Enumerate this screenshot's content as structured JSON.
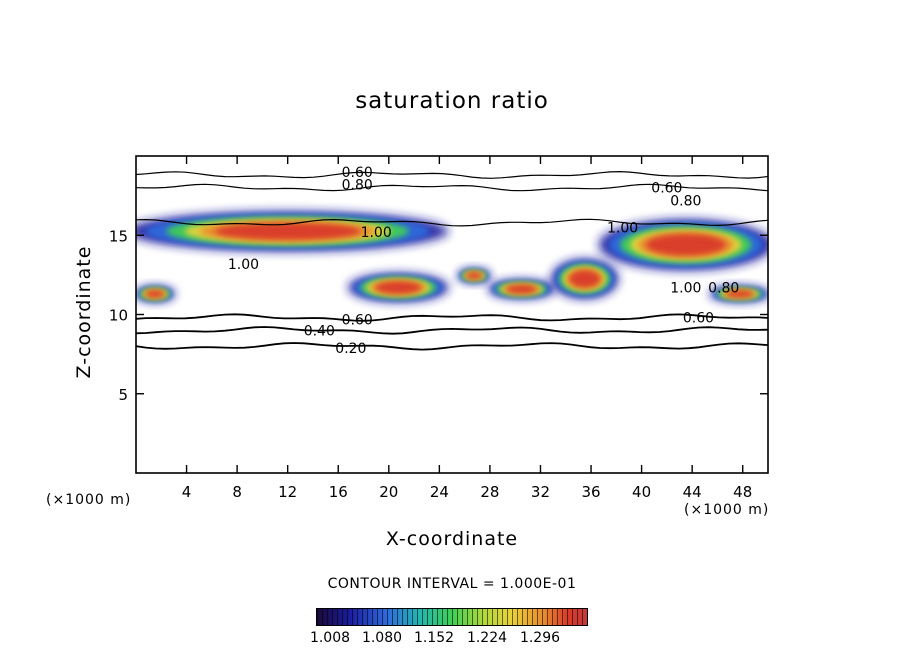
{
  "title": "saturation ratio",
  "axes": {
    "xlabel": "X-coordinate",
    "ylabel": "Z-coordinate",
    "x_unit": "(×1000 m)",
    "z_unit": "(×1000 m)"
  },
  "contour_interval_label": "CONTOUR INTERVAL = 1.000E-01",
  "colorbar": {
    "tick_labels": [
      "1.008",
      "1.080",
      "1.152",
      "1.224",
      "1.296"
    ],
    "colors": [
      "#1a0b3a",
      "#1b1b9e",
      "#2f6bdc",
      "#23b6b0",
      "#3fcf55",
      "#b3d93b",
      "#e9d23a",
      "#e88a2f",
      "#d93a2a"
    ]
  },
  "chart_data": {
    "type": "heatmap",
    "title": "saturation ratio",
    "xlabel": "X-coordinate",
    "ylabel": "Z-coordinate",
    "xlim": [
      0,
      50
    ],
    "ylim": [
      0,
      20
    ],
    "x_ticks": [
      4,
      8,
      12,
      16,
      20,
      24,
      28,
      32,
      36,
      40,
      44,
      48
    ],
    "y_ticks": [
      5,
      10,
      15
    ],
    "grid": false,
    "contour_lines": [
      {
        "label": "0.20",
        "z": 8.0
      },
      {
        "label": "0.40",
        "z": 9.0
      },
      {
        "label": "0.60",
        "z": 9.8
      },
      {
        "label": "0.80",
        "z": 18.0
      },
      {
        "label": "0.60",
        "z": 18.8
      },
      {
        "label": "1.00",
        "z": 15.8
      }
    ],
    "contour_labels": [
      {
        "text": "0.60",
        "x": 17.5,
        "z": 19.0
      },
      {
        "text": "0.80",
        "x": 17.5,
        "z": 18.2
      },
      {
        "text": "0.60",
        "x": 42,
        "z": 18.0
      },
      {
        "text": "0.80",
        "x": 43.5,
        "z": 17.2
      },
      {
        "text": "1.00",
        "x": 38.5,
        "z": 15.5
      },
      {
        "text": "1.00",
        "x": 19,
        "z": 15.2
      },
      {
        "text": "1.00",
        "x": 8.5,
        "z": 13.2
      },
      {
        "text": "1.00",
        "x": 43.5,
        "z": 11.7
      },
      {
        "text": "0.80",
        "x": 46.5,
        "z": 11.7
      },
      {
        "text": "0.60",
        "x": 44.5,
        "z": 9.8
      },
      {
        "text": "0.60",
        "x": 17.5,
        "z": 9.7
      },
      {
        "text": "0.40",
        "x": 14.5,
        "z": 9.0
      },
      {
        "text": "0.20",
        "x": 17,
        "z": 7.9
      }
    ],
    "colorbar_range": [
      1.008,
      1.296
    ],
    "colorbar_ticks": [
      1.008,
      1.08,
      1.152,
      1.224,
      1.296
    ],
    "supersaturated_regions": [
      {
        "x_range": [
          0,
          24
        ],
        "z_range": [
          14.0,
          16.5
        ],
        "peak": 1.29
      },
      {
        "x_range": [
          0,
          3
        ],
        "z_range": [
          10.8,
          11.8
        ],
        "peak": 1.29
      },
      {
        "x_range": [
          17,
          24.5
        ],
        "z_range": [
          10.8,
          12.6
        ],
        "peak": 1.29
      },
      {
        "x_range": [
          25.5,
          28
        ],
        "z_range": [
          12.0,
          12.9
        ],
        "peak": 1.29
      },
      {
        "x_range": [
          28,
          33
        ],
        "z_range": [
          11.0,
          12.2
        ],
        "peak": 1.29
      },
      {
        "x_range": [
          33,
          38
        ],
        "z_range": [
          11.0,
          13.5
        ],
        "peak": 1.29
      },
      {
        "x_range": [
          37,
          50
        ],
        "z_range": [
          12.8,
          16.0
        ],
        "peak": 1.29
      },
      {
        "x_range": [
          45.5,
          50
        ],
        "z_range": [
          10.8,
          11.8
        ],
        "peak": 1.29
      }
    ]
  }
}
